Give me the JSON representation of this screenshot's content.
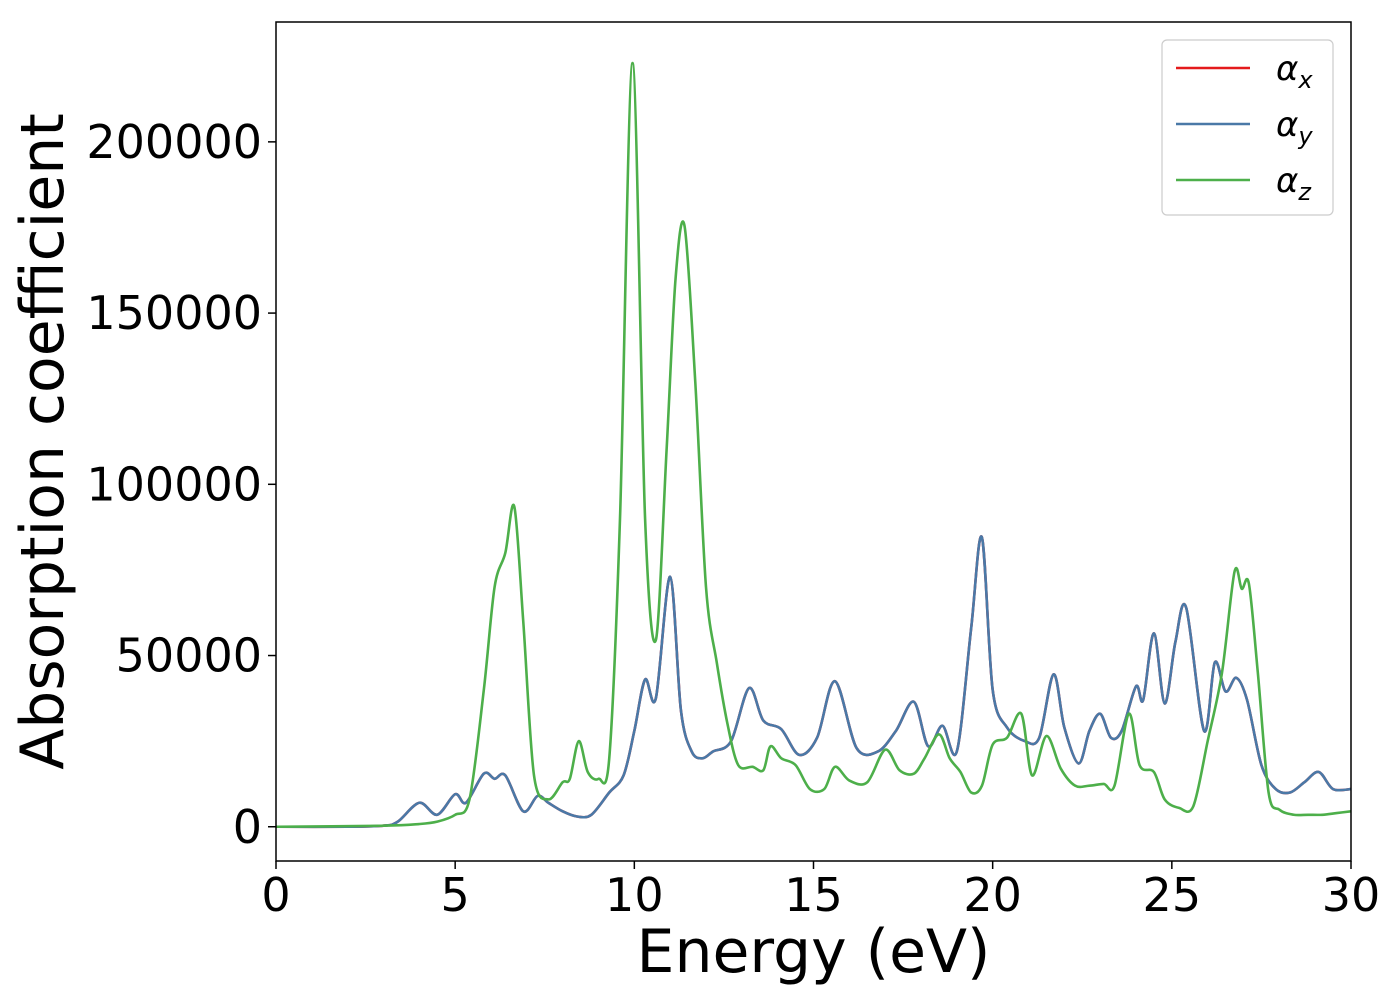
{
  "chart_data": {
    "type": "line",
    "xlabel": "Energy (eV)",
    "ylabel": "Absorption coefficient",
    "xlim": [
      0,
      30
    ],
    "ylim": [
      -10000,
      235000
    ],
    "xticks": [
      0,
      5,
      10,
      15,
      20,
      25,
      30
    ],
    "yticks": [
      0,
      50000,
      100000,
      150000,
      200000
    ],
    "grid": false,
    "legend_position": "top-right",
    "series": [
      {
        "name": "α_x",
        "color": "#e41a1c",
        "x": [
          0,
          2,
          3,
          3.4,
          4,
          4.5,
          5,
          5.3,
          5.8,
          6.1,
          6.4,
          6.9,
          7.3,
          7.6,
          8,
          8.4,
          8.8,
          9.3,
          9.7,
          10,
          10.3,
          10.6,
          11,
          11.3,
          11.6,
          11.9,
          12.2,
          12.7,
          13.2,
          13.6,
          14.1,
          14.6,
          15.1,
          15.6,
          16.2,
          16.8,
          17.3,
          17.8,
          18.2,
          18.6,
          19,
          19.4,
          19.7,
          20,
          20.4,
          20.9,
          21.3,
          21.7,
          22,
          22.4,
          22.7,
          23,
          23.3,
          23.6,
          24,
          24.2,
          24.5,
          24.8,
          25.1,
          25.4,
          25.9,
          26.2,
          26.5,
          26.8,
          27.1,
          27.5,
          27.9,
          28.3,
          28.7,
          29.1,
          29.5,
          30
        ],
        "values": [
          0,
          0,
          300,
          1500,
          7000,
          3500,
          9500,
          7000,
          15500,
          14000,
          15000,
          4500,
          9000,
          7000,
          4500,
          3000,
          3500,
          10000,
          15000,
          28000,
          43000,
          37500,
          73000,
          34000,
          22000,
          20000,
          22000,
          25000,
          40500,
          31000,
          28500,
          21000,
          26000,
          42500,
          23000,
          22000,
          28000,
          36500,
          23500,
          29500,
          22000,
          58000,
          84500,
          40000,
          29000,
          25000,
          26000,
          44500,
          29000,
          18500,
          28000,
          33000,
          26000,
          28000,
          41000,
          37000,
          56500,
          36000,
          54000,
          64000,
          28000,
          48000,
          39500,
          43500,
          37000,
          18000,
          11000,
          10000,
          13000,
          16000,
          11000,
          11000
        ]
      },
      {
        "name": "α_y",
        "color": "#4a79a7",
        "x": [
          0,
          2,
          3,
          3.4,
          4,
          4.5,
          5,
          5.3,
          5.8,
          6.1,
          6.4,
          6.9,
          7.3,
          7.6,
          8,
          8.4,
          8.8,
          9.3,
          9.7,
          10,
          10.3,
          10.6,
          11,
          11.3,
          11.6,
          11.9,
          12.2,
          12.7,
          13.2,
          13.6,
          14.1,
          14.6,
          15.1,
          15.6,
          16.2,
          16.8,
          17.3,
          17.8,
          18.2,
          18.6,
          19,
          19.4,
          19.7,
          20,
          20.4,
          20.9,
          21.3,
          21.7,
          22,
          22.4,
          22.7,
          23,
          23.3,
          23.6,
          24,
          24.2,
          24.5,
          24.8,
          25.1,
          25.4,
          25.9,
          26.2,
          26.5,
          26.8,
          27.1,
          27.5,
          27.9,
          28.3,
          28.7,
          29.1,
          29.5,
          30
        ],
        "values": [
          0,
          0,
          300,
          1500,
          7000,
          3500,
          9500,
          7000,
          15500,
          14000,
          15000,
          4500,
          9000,
          7000,
          4500,
          3000,
          3500,
          10000,
          15000,
          28000,
          43000,
          37500,
          73000,
          34000,
          22000,
          20000,
          22000,
          25000,
          40500,
          31000,
          28500,
          21000,
          26000,
          42500,
          23000,
          22000,
          28000,
          36500,
          23500,
          29500,
          22000,
          58000,
          84500,
          40000,
          29000,
          25000,
          26000,
          44500,
          29000,
          18500,
          28000,
          33000,
          26000,
          28000,
          41000,
          37000,
          56500,
          36000,
          54000,
          64000,
          28000,
          48000,
          39500,
          43500,
          37000,
          18000,
          11000,
          10000,
          13000,
          16000,
          11000,
          11000
        ]
      },
      {
        "name": "α_z",
        "color": "#4daf4a",
        "x": [
          0,
          3,
          4,
          4.5,
          5,
          5.4,
          5.8,
          6.1,
          6.4,
          6.65,
          6.9,
          7.2,
          7.6,
          8,
          8.2,
          8.45,
          8.7,
          9,
          9.3,
          9.6,
          9.95,
          10.3,
          10.6,
          10.9,
          11.15,
          11.4,
          11.7,
          12,
          12.3,
          12.6,
          12.9,
          13.3,
          13.6,
          13.8,
          14.1,
          14.5,
          14.9,
          15.3,
          15.6,
          16,
          16.5,
          17,
          17.4,
          17.8,
          18.1,
          18.5,
          18.8,
          19.1,
          19.4,
          19.7,
          20,
          20.4,
          20.8,
          21.1,
          21.5,
          21.9,
          22.3,
          22.7,
          23.1,
          23.4,
          23.8,
          24.1,
          24.5,
          24.8,
          25.2,
          25.6,
          26,
          26.4,
          26.75,
          26.95,
          27.15,
          27.4,
          27.7,
          28,
          28.4,
          28.8,
          29.2,
          29.6,
          30
        ],
        "values": [
          0,
          300,
          800,
          1500,
          3500,
          8000,
          40000,
          70000,
          80000,
          93500,
          60000,
          15000,
          8000,
          13000,
          14000,
          25000,
          16000,
          14000,
          20000,
          90000,
          223000,
          90000,
          54500,
          110000,
          160000,
          175500,
          130000,
          70000,
          48000,
          30000,
          18000,
          17500,
          16500,
          23500,
          20000,
          18000,
          11000,
          11000,
          17500,
          13500,
          13000,
          22500,
          16500,
          15500,
          20000,
          27000,
          20000,
          16000,
          10000,
          12000,
          24000,
          26000,
          33000,
          15000,
          26500,
          17000,
          12000,
          12000,
          12500,
          12000,
          33000,
          18000,
          16000,
          8000,
          5500,
          6000,
          25000,
          45000,
          74500,
          69500,
          71000,
          45000,
          10000,
          5000,
          3500,
          3500,
          3500,
          4000,
          4500
        ]
      }
    ]
  }
}
